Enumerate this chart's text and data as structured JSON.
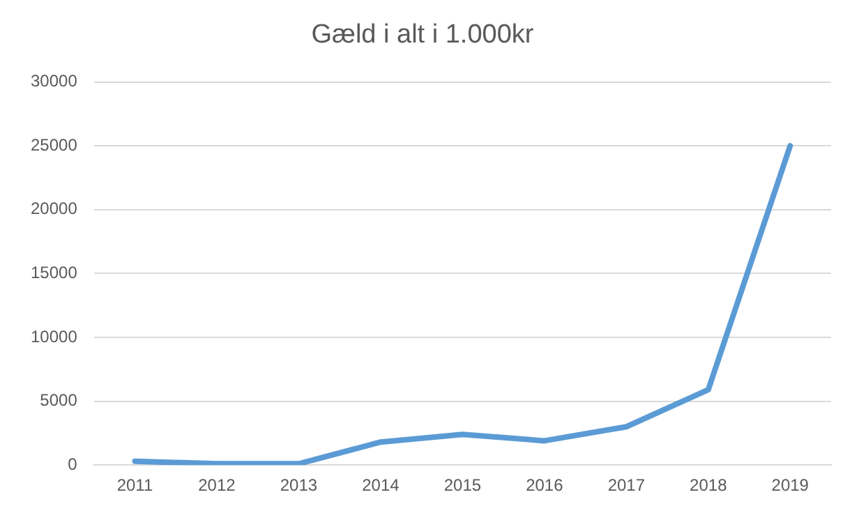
{
  "chart_data": {
    "type": "line",
    "title": "Gæld i alt i 1.000kr",
    "categories": [
      "2011",
      "2012",
      "2013",
      "2014",
      "2015",
      "2016",
      "2017",
      "2018",
      "2019"
    ],
    "series": [
      {
        "color": "#5b9bd5",
        "values": [
          300,
          100,
          100,
          1800,
          2400,
          1900,
          3000,
          5900,
          25000
        ]
      }
    ],
    "ylim": [
      0,
      30000
    ],
    "yticks": [
      0,
      5000,
      10000,
      15000,
      20000,
      25000,
      30000
    ],
    "grid": "y",
    "legend": false,
    "marker": "none",
    "line_style": "solid"
  }
}
